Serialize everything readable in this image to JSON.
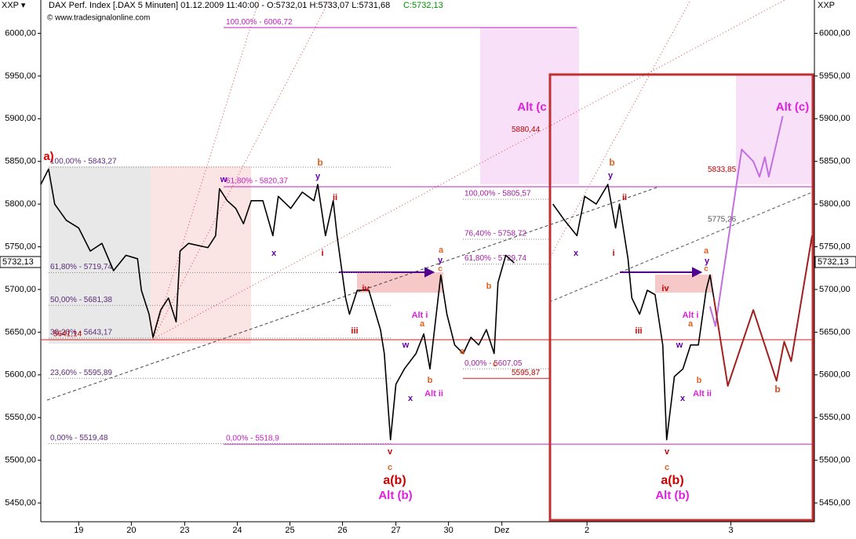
{
  "header": {
    "symbol": "XXP ▾",
    "info": "DAX Perf. Index [.DAX  5 Minuten] 01.12.2009 11:40:00 - O:5732,01 H:5733,07 L:5731,68",
    "close": "C:5732,13",
    "copyright": "© www.tradesignalonline.com",
    "right_symbol": "XXP"
  },
  "chart_data": {
    "type": "line",
    "xlim": [
      0,
      100
    ],
    "ylim": [
      5428,
      6039
    ],
    "xticks": [
      {
        "value": 4.9,
        "label": "19"
      },
      {
        "value": 11.7,
        "label": "20"
      },
      {
        "value": 18.6,
        "label": "23"
      },
      {
        "value": 25.4,
        "label": "24"
      },
      {
        "value": 32.2,
        "label": "25"
      },
      {
        "value": 39.0,
        "label": "26"
      },
      {
        "value": 45.9,
        "label": "27"
      },
      {
        "value": 52.7,
        "label": "30"
      },
      {
        "value": 59.6,
        "label": "Dez"
      },
      {
        "value": 70.6,
        "label": "2"
      },
      {
        "value": 89.2,
        "label": "3"
      }
    ],
    "yticks": [
      {
        "value": 5450,
        "label": "5450,00"
      },
      {
        "value": 5500,
        "label": "5500,00"
      },
      {
        "value": 5550,
        "label": "5550,00"
      },
      {
        "value": 5600,
        "label": "5600,00"
      },
      {
        "value": 5650,
        "label": "5650,00"
      },
      {
        "value": 5700,
        "label": "5700,00"
      },
      {
        "value": 5750,
        "label": "5750,00"
      },
      {
        "value": 5800,
        "label": "5800,00"
      },
      {
        "value": 5850,
        "label": "5850,00"
      },
      {
        "value": 5900,
        "label": "5900,00"
      },
      {
        "value": 5950,
        "label": "5950,00"
      },
      {
        "value": 6000,
        "label": "6000,00"
      }
    ],
    "last": {
      "value": 5732.13,
      "label": "5732,13"
    },
    "series": [
      {
        "color": "#000000",
        "x": [
          0,
          1,
          1.8,
          3.3,
          4.9,
          6.4,
          7.9,
          9.4,
          11,
          12.5,
          13,
          14,
          14.5,
          15.5,
          16.5,
          17.5,
          18,
          19.1,
          21.6,
          22.6,
          23.1,
          24.1,
          25.2,
          26.2,
          27.2,
          28.7,
          30,
          30.7,
          32.3,
          33.8,
          35.3,
          35.8,
          36.8,
          37.8,
          38.3,
          39.4,
          39.9,
          40.9,
          42.4,
          43.9,
          44.4,
          45.2,
          45.9,
          47,
          48.5,
          49.5,
          50.3,
          51.7,
          52.5,
          53.5,
          54.6,
          55.6,
          56.6,
          57.6,
          58.6,
          59.1,
          60.1,
          61.2,
          65,
          66.2,
          67.7,
          69.3,
          70.3,
          71.8,
          73.3,
          74.3,
          74.8,
          75.9,
          76.4,
          77.4,
          78.4,
          79.4,
          80.4,
          80.9,
          81.9,
          83,
          84,
          85,
          86,
          86.5,
          87
        ],
        "values": [
          5823,
          5841,
          5800,
          5781,
          5772,
          5745,
          5754,
          5722,
          5740,
          5736,
          5699,
          5671,
          5644,
          5676,
          5690,
          5662,
          5745,
          5754,
          5749,
          5763,
          5818,
          5804,
          5795,
          5777,
          5804,
          5804,
          5763,
          5809,
          5795,
          5814,
          5804,
          5823,
          5763,
          5804,
          5763,
          5690,
          5671,
          5699,
          5699,
          5653,
          5625,
          5524,
          5589,
          5607,
          5625,
          5648,
          5607,
          5717,
          5671,
          5635,
          5625,
          5644,
          5635,
          5653,
          5625,
          5708,
          5740,
          5731,
          null,
          5800,
          5781,
          5763,
          5809,
          5800,
          5823,
          5772,
          5800,
          5736,
          5690,
          5671,
          5699,
          5694,
          5635,
          5524,
          5598,
          5607,
          5635,
          5635,
          5699,
          5717,
          5690
        ]
      },
      {
        "color": "#c070e0",
        "x": [
          86.5,
          87.2,
          88.5,
          90.6,
          92.1,
          92.9,
          93.6,
          94.1,
          95.9
        ],
        "values": [
          5680,
          5657,
          5736,
          5864,
          5850,
          5832,
          5855,
          5832,
          5903
        ]
      },
      {
        "color": "#a02020",
        "x": [
          87,
          88.8,
          92.1,
          95.1,
          96.1,
          97,
          99.7
        ],
        "values": [
          5690,
          5587,
          5676,
          5593,
          5639,
          5616,
          5763
        ]
      }
    ],
    "levels": [
      {
        "value": 5843.27,
        "label": "100,00% - 5843,27"
      },
      {
        "value": 5719.74,
        "label": "61,80% - 5719,74"
      },
      {
        "value": 5681.38,
        "label": "50,00% - 5681,38"
      },
      {
        "value": 5643.17,
        "label": "38,20% - 5643,17"
      },
      {
        "value": 5595.89,
        "label": "23,60% - 5595,89"
      },
      {
        "value": 5519.48,
        "label": "0,00% - 5519,48"
      },
      {
        "value": 6006.72,
        "label": "100,00% - 6006,72"
      },
      {
        "value": 5820.37,
        "label": "61,80% - 5820,37"
      },
      {
        "value": 5518.9,
        "label": "0,00% - 5518,9"
      },
      {
        "value": 5805.57,
        "label": "100,00% - 5805,57"
      },
      {
        "value": 5758.72,
        "label": "76,40% - 5758,72"
      },
      {
        "value": 5729.74,
        "label": "61,80% - 5729,74"
      },
      {
        "value": 5607.05,
        "label": "0,00% - 5607,05"
      },
      {
        "value": 5641.14,
        "label": "5641,14"
      },
      {
        "value": 5595.87,
        "label": "5595,87"
      },
      {
        "value": 5880.44,
        "label": "5880,44"
      },
      {
        "value": 5833.85,
        "label": "5833,85"
      },
      {
        "value": 5775.26,
        "label": "5775,26"
      }
    ],
    "annotations": [
      "a)",
      "w",
      "x",
      "y",
      "b",
      "ii",
      "i",
      "iii",
      "iv",
      "v",
      "c",
      "a(b)",
      "Alt (b)",
      "Alt (c",
      "y",
      "a",
      "c",
      "w",
      "x",
      "Alt ii",
      "b",
      "a",
      "Alt i",
      "b",
      "c",
      "a",
      "b",
      "y",
      "ii",
      "i",
      "x",
      "iii",
      "iv",
      "w",
      "x",
      "Alt ii",
      "b",
      "a",
      "Alt i",
      "a",
      "y",
      "c",
      "v",
      "c",
      "a(b)",
      "Alt (b)",
      "Alt (c)",
      "b"
    ]
  }
}
